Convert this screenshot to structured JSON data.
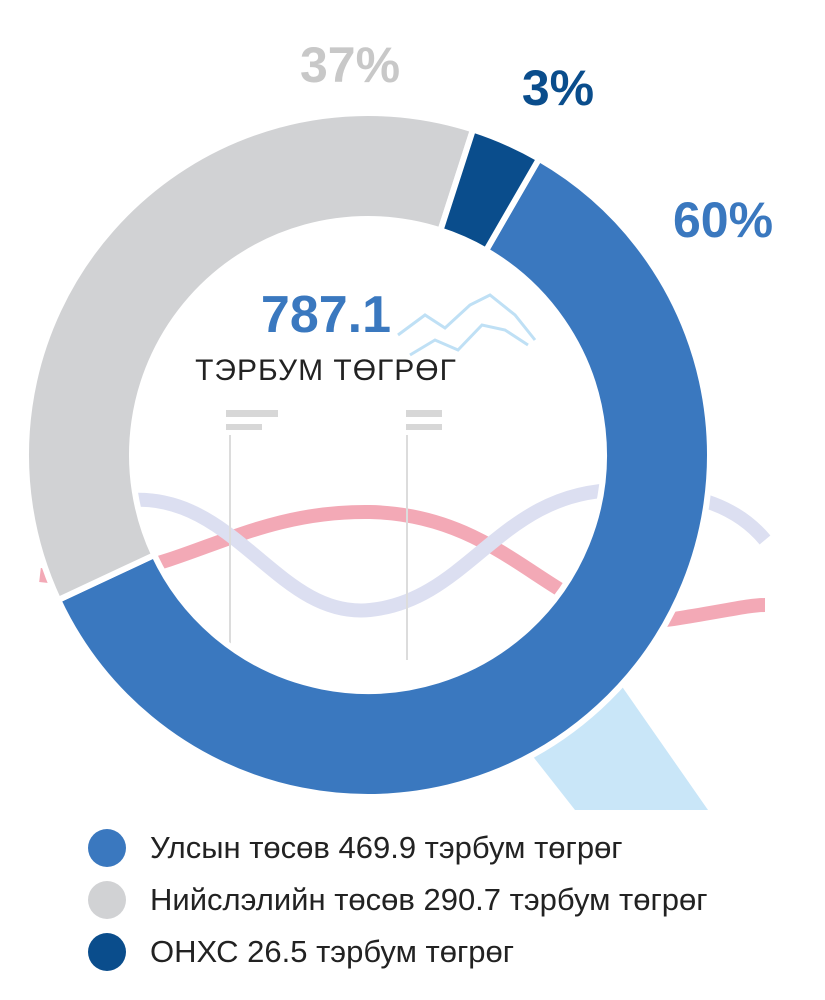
{
  "chart_data": {
    "type": "pie",
    "variant": "donut",
    "total": {
      "value": "787.1",
      "unit": "ТЭРБУМ ТӨГРӨГ"
    },
    "slices": [
      {
        "label": "Улсын төсөв 469.9 тэрбум төгрөг",
        "value": 469.9,
        "percent_label": "60%",
        "color": "#3a78bf"
      },
      {
        "label": "Нийслэлийн төсөв 290.7 тэрбум төгрөг",
        "value": 290.7,
        "percent_label": "37%",
        "color": "#d1d2d4"
      },
      {
        "label": "ОНХС 26.5 тэрбум төгрөг",
        "value": 26.5,
        "percent_label": "3%",
        "color": "#0a4d8c"
      }
    ],
    "legend_position": "bottom-left"
  }
}
